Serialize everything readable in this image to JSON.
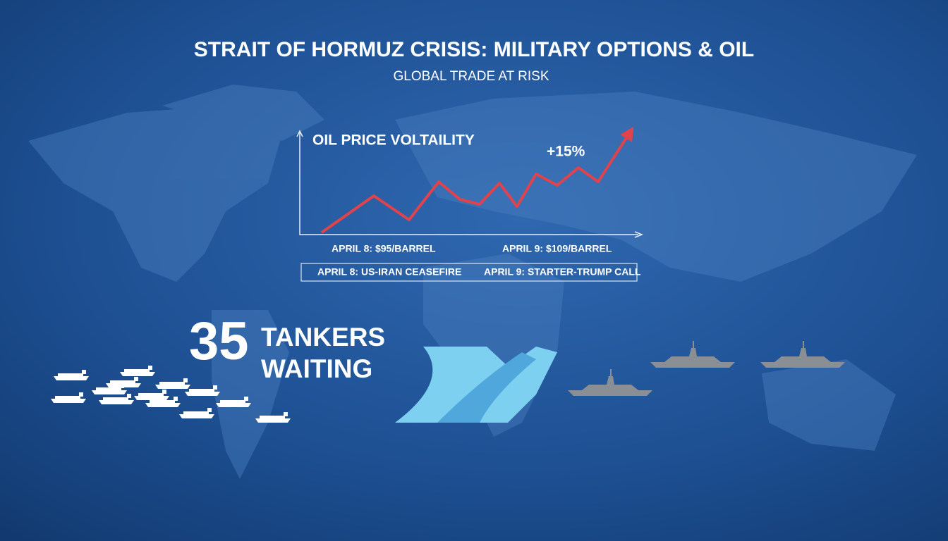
{
  "header": {
    "title": "STRAIT OF HORMUZ CRISIS: MILITARY OPTIONS & OIL",
    "subtitle": "GLOBAL TRADE AT RISK"
  },
  "chart": {
    "title": "OIL PRICE VOLTAILITY",
    "change": "+15%",
    "labels": [
      "APRIL 8: $95/BARREL",
      "APRIL 9: $109/BARREL"
    ]
  },
  "events": [
    "APRIL 8: US-IRAN CEASEFIRE",
    "APRIL 9: STARTER-TRUMP CALL"
  ],
  "tankers": {
    "count": 35,
    "label": [
      "TANKERS",
      "WAITING"
    ]
  }
}
